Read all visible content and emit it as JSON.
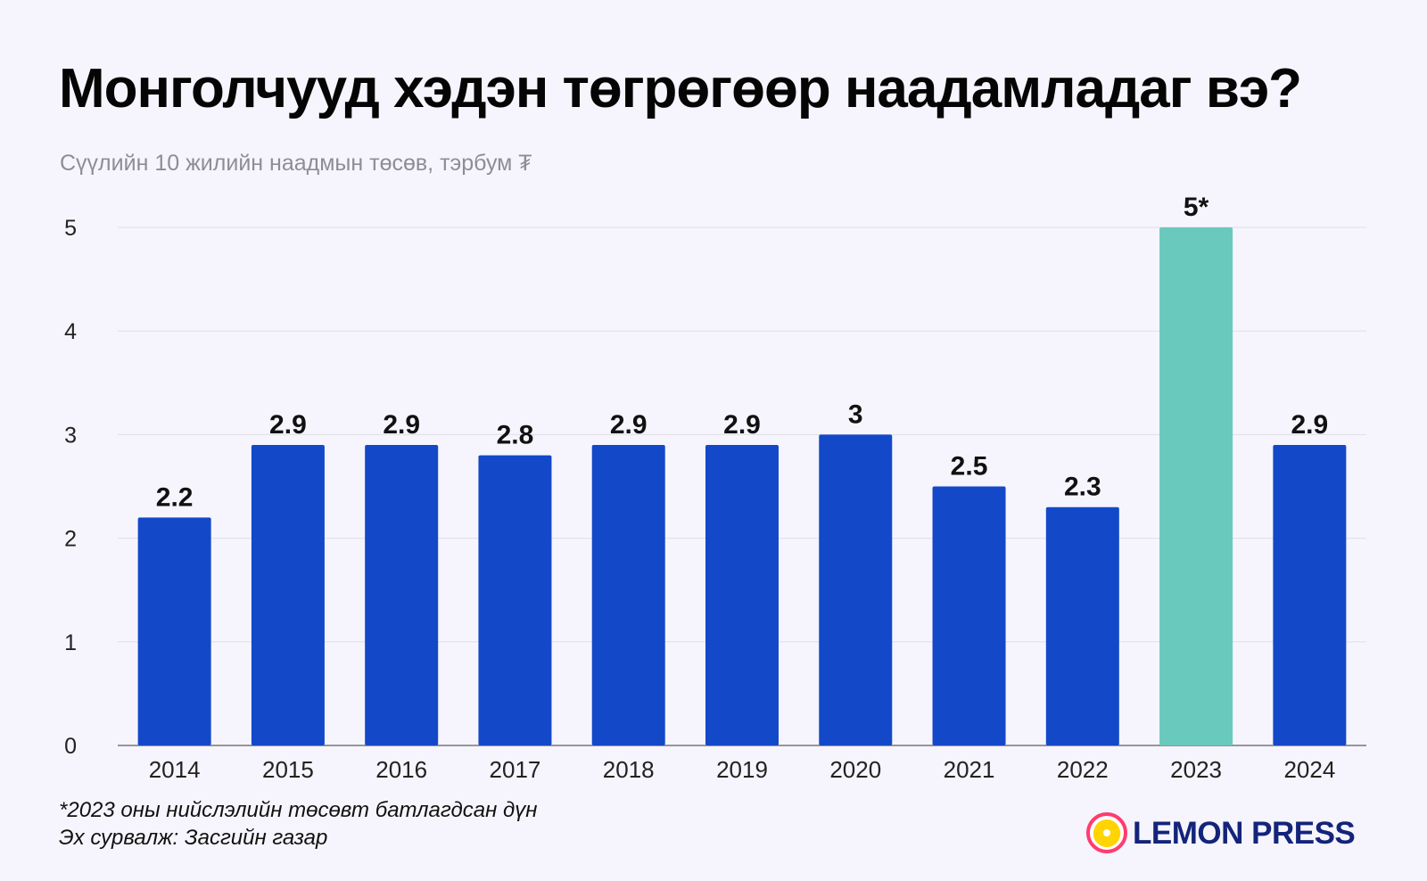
{
  "chart_data": {
    "type": "bar",
    "title": "Монголчууд хэдэн төгрөгөөр наадамладаг вэ?",
    "subtitle": "Сүүлийн 10 жилийн наадмын төсөв, тэрбум ₮",
    "categories": [
      "2014",
      "2015",
      "2016",
      "2017",
      "2018",
      "2019",
      "2020",
      "2021",
      "2022",
      "2023",
      "2024"
    ],
    "values": [
      2.2,
      2.9,
      2.9,
      2.8,
      2.9,
      2.9,
      3,
      2.5,
      2.3,
      5,
      2.9
    ],
    "data_labels": [
      "2.2",
      "2.9",
      "2.9",
      "2.8",
      "2.9",
      "2.9",
      "3",
      "2.5",
      "2.3",
      "5*",
      "2.9"
    ],
    "ylim": [
      0,
      5
    ],
    "yticks": [
      "0",
      "1",
      "2",
      "3",
      "4",
      "5"
    ],
    "grid": true,
    "colors": {
      "bar": "#1349c8",
      "highlight": "#69c9bd",
      "grid": "#dfdde6",
      "axis": "#777777"
    },
    "highlight_category": "2023"
  },
  "notes": {
    "footnote": "*2023 оны нийслэлийн төсөвт батлагдсан дүн",
    "source": "Эх сурвалж: Засгийн газар"
  },
  "brand": {
    "name": "LEMON PRESS",
    "icon": "lemon-icon",
    "colors": {
      "circle": "#ff3d6f",
      "lemon": "#ffd400",
      "text": "#14247b"
    }
  }
}
